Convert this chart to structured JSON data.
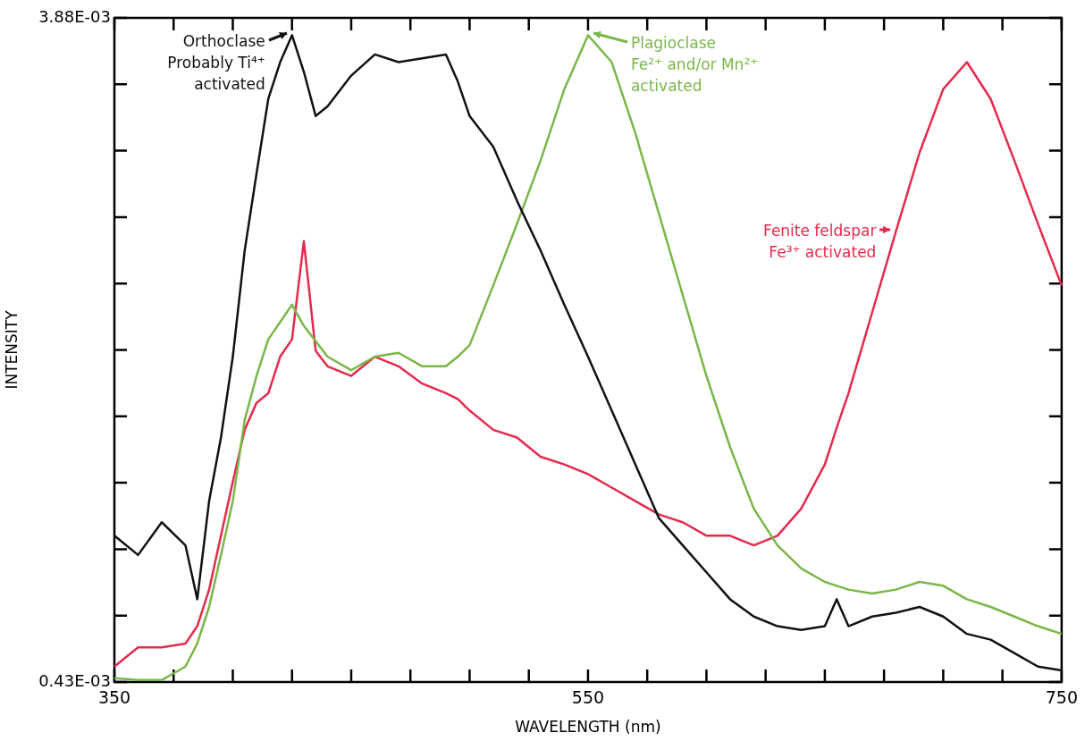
{
  "chart_data": {
    "type": "line",
    "xlabel": "WAVELENGTH (nm)",
    "ylabel": "INTENSITY",
    "xlim": [
      350,
      750
    ],
    "ylim": [
      0.00043,
      0.00388
    ],
    "xticks": [
      350,
      {
        "value": 375,
        "label": null
      },
      {
        "value": 400,
        "label": null
      },
      {
        "value": 425,
        "label": null
      },
      {
        "value": 450,
        "label": null
      },
      {
        "value": 475,
        "label": null
      },
      {
        "value": 500,
        "label": null
      },
      {
        "value": 525,
        "label": null
      },
      550,
      {
        "value": 575,
        "label": null
      },
      {
        "value": 600,
        "label": null
      },
      {
        "value": 625,
        "label": null
      },
      {
        "value": 650,
        "label": null
      },
      {
        "value": 675,
        "label": null
      },
      {
        "value": 700,
        "label": null
      },
      {
        "value": 725,
        "label": null
      },
      750
    ],
    "yticks": [
      {
        "value": 0.00043,
        "label": "0.43E-03"
      },
      {
        "value": 0.000775,
        "label": null
      },
      {
        "value": 0.00112,
        "label": null
      },
      {
        "value": 0.001465,
        "label": null
      },
      {
        "value": 0.00181,
        "label": null
      },
      {
        "value": 0.002155,
        "label": null
      },
      {
        "value": 0.0025,
        "label": null
      },
      {
        "value": 0.002845,
        "label": null
      },
      {
        "value": 0.00319,
        "label": null
      },
      {
        "value": 0.003535,
        "label": null
      },
      {
        "value": 0.00388,
        "label": "3.88E-03"
      }
    ],
    "grid": false,
    "legend": false,
    "line_style": "solid",
    "x": [
      350,
      360,
      370,
      380,
      385,
      390,
      395,
      400,
      405,
      410,
      415,
      420,
      425,
      430,
      435,
      440,
      450,
      460,
      470,
      480,
      490,
      495,
      500,
      510,
      520,
      530,
      540,
      550,
      560,
      570,
      580,
      590,
      600,
      610,
      620,
      630,
      640,
      650,
      655,
      660,
      670,
      680,
      690,
      700,
      710,
      720,
      730,
      740,
      750
    ],
    "series": [
      {
        "color": "#111111",
        "values": [
          0.00119,
          0.00109,
          0.00126,
          0.00114,
          0.00086,
          0.00137,
          0.0017,
          0.00212,
          0.00267,
          0.00307,
          0.00346,
          0.00365,
          0.00379,
          0.0036,
          0.00337,
          0.00342,
          0.00358,
          0.00369,
          0.00365,
          0.00367,
          0.00369,
          0.00355,
          0.00337,
          0.00321,
          0.00293,
          0.00267,
          0.00239,
          0.00212,
          0.00184,
          0.00156,
          0.00128,
          0.00114,
          0.001,
          0.00086,
          0.00077,
          0.00072,
          0.0007,
          0.00072,
          0.00086,
          0.00072,
          0.00077,
          0.00079,
          0.00082,
          0.00077,
          0.00068,
          0.00065,
          0.00058,
          0.00051,
          0.00049
        ]
      },
      {
        "color": "#7ab648",
        "values": [
          0.00045,
          0.00044,
          0.00044,
          0.00051,
          0.00063,
          0.00082,
          0.00109,
          0.00137,
          0.00179,
          0.00202,
          0.00221,
          0.0023,
          0.00239,
          0.00228,
          0.0022,
          0.00212,
          0.00205,
          0.00212,
          0.00214,
          0.00207,
          0.00207,
          0.00212,
          0.00218,
          0.00249,
          0.00281,
          0.00314,
          0.00351,
          0.00379,
          0.00365,
          0.00328,
          0.00286,
          0.00244,
          0.00202,
          0.00165,
          0.00133,
          0.00114,
          0.00102,
          0.00095,
          0.00093,
          0.00091,
          0.00089,
          0.00091,
          0.00095,
          0.00093,
          0.00086,
          0.00082,
          0.00077,
          0.00072,
          0.00068
        ]
      },
      {
        "color": "#e52a4c",
        "values": [
          0.00051,
          0.00061,
          0.00061,
          0.00063,
          0.00072,
          0.00091,
          0.00119,
          0.00147,
          0.00174,
          0.00188,
          0.00193,
          0.00212,
          0.00221,
          0.00272,
          0.00215,
          0.00207,
          0.00202,
          0.00212,
          0.00207,
          0.00198,
          0.00193,
          0.0019,
          0.00184,
          0.00174,
          0.0017,
          0.0016,
          0.00156,
          0.00151,
          0.00144,
          0.00137,
          0.0013,
          0.00126,
          0.00119,
          0.00119,
          0.00114,
          0.00119,
          0.00133,
          0.00156,
          0.00175,
          0.00193,
          0.00235,
          0.00277,
          0.00318,
          0.00351,
          0.00365,
          0.00346,
          0.00314,
          0.00281,
          0.00249
        ]
      }
    ],
    "annotations": [
      {
        "text": "Orthoclase\nProbably Ti⁴⁺\nactivated",
        "x": 425,
        "y": 0.00379
      },
      {
        "text": "Plagioclase\nFe²⁺ and/or Mn²⁺\nactivated",
        "x": 550,
        "y": 0.00379
      },
      {
        "text": "Fenite feldspar\nFe³⁺ activated",
        "x": 680,
        "y": 0.00277
      }
    ]
  }
}
